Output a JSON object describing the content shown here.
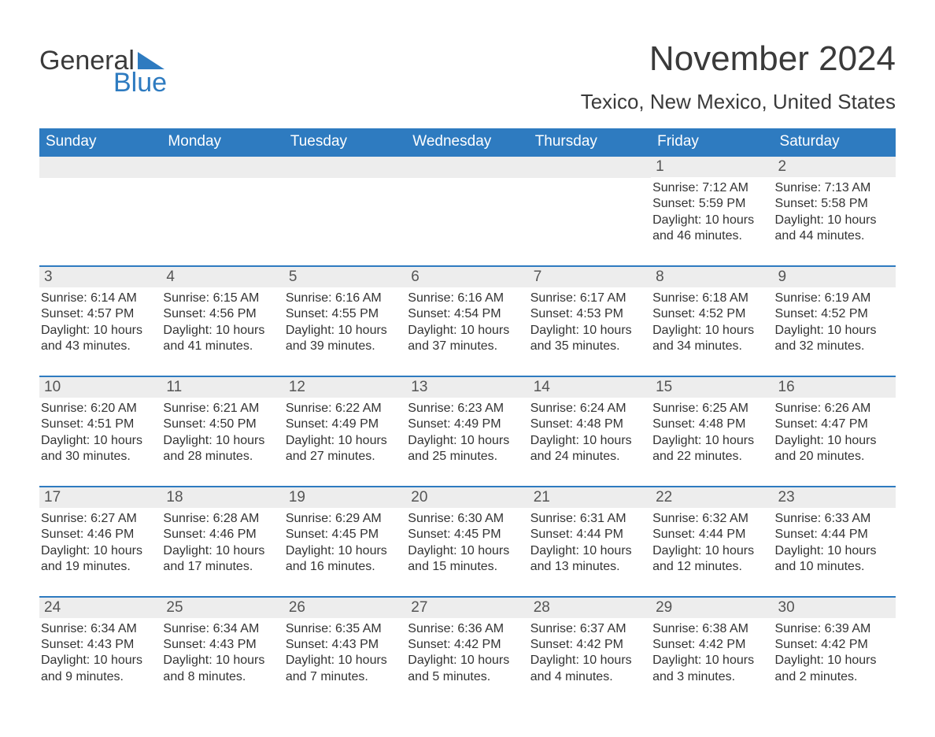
{
  "logo": {
    "word1": "General",
    "word2": "Blue",
    "accent": "#2e7bc0",
    "text_color": "#3a3a3a"
  },
  "title": "November 2024",
  "location": "Texico, New Mexico, United States",
  "colors": {
    "header_bg": "#2e7bc0",
    "header_text": "#ffffff",
    "row_border": "#2e7bc0",
    "daynum_bg": "#ededed",
    "daynum_text": "#555555",
    "body_text": "#333333",
    "page_bg": "#ffffff"
  },
  "typography": {
    "title_fontsize": 44,
    "location_fontsize": 26,
    "weekday_fontsize": 19,
    "daynum_fontsize": 19,
    "info_fontsize": 16,
    "font_family": "Segoe UI"
  },
  "weekdays": [
    "Sunday",
    "Monday",
    "Tuesday",
    "Wednesday",
    "Thursday",
    "Friday",
    "Saturday"
  ],
  "leading_blanks": 5,
  "days": [
    {
      "n": 1,
      "sunrise": "7:12 AM",
      "sunset": "5:59 PM",
      "daylight": "10 hours and 46 minutes."
    },
    {
      "n": 2,
      "sunrise": "7:13 AM",
      "sunset": "5:58 PM",
      "daylight": "10 hours and 44 minutes."
    },
    {
      "n": 3,
      "sunrise": "6:14 AM",
      "sunset": "4:57 PM",
      "daylight": "10 hours and 43 minutes."
    },
    {
      "n": 4,
      "sunrise": "6:15 AM",
      "sunset": "4:56 PM",
      "daylight": "10 hours and 41 minutes."
    },
    {
      "n": 5,
      "sunrise": "6:16 AM",
      "sunset": "4:55 PM",
      "daylight": "10 hours and 39 minutes."
    },
    {
      "n": 6,
      "sunrise": "6:16 AM",
      "sunset": "4:54 PM",
      "daylight": "10 hours and 37 minutes."
    },
    {
      "n": 7,
      "sunrise": "6:17 AM",
      "sunset": "4:53 PM",
      "daylight": "10 hours and 35 minutes."
    },
    {
      "n": 8,
      "sunrise": "6:18 AM",
      "sunset": "4:52 PM",
      "daylight": "10 hours and 34 minutes."
    },
    {
      "n": 9,
      "sunrise": "6:19 AM",
      "sunset": "4:52 PM",
      "daylight": "10 hours and 32 minutes."
    },
    {
      "n": 10,
      "sunrise": "6:20 AM",
      "sunset": "4:51 PM",
      "daylight": "10 hours and 30 minutes."
    },
    {
      "n": 11,
      "sunrise": "6:21 AM",
      "sunset": "4:50 PM",
      "daylight": "10 hours and 28 minutes."
    },
    {
      "n": 12,
      "sunrise": "6:22 AM",
      "sunset": "4:49 PM",
      "daylight": "10 hours and 27 minutes."
    },
    {
      "n": 13,
      "sunrise": "6:23 AM",
      "sunset": "4:49 PM",
      "daylight": "10 hours and 25 minutes."
    },
    {
      "n": 14,
      "sunrise": "6:24 AM",
      "sunset": "4:48 PM",
      "daylight": "10 hours and 24 minutes."
    },
    {
      "n": 15,
      "sunrise": "6:25 AM",
      "sunset": "4:48 PM",
      "daylight": "10 hours and 22 minutes."
    },
    {
      "n": 16,
      "sunrise": "6:26 AM",
      "sunset": "4:47 PM",
      "daylight": "10 hours and 20 minutes."
    },
    {
      "n": 17,
      "sunrise": "6:27 AM",
      "sunset": "4:46 PM",
      "daylight": "10 hours and 19 minutes."
    },
    {
      "n": 18,
      "sunrise": "6:28 AM",
      "sunset": "4:46 PM",
      "daylight": "10 hours and 17 minutes."
    },
    {
      "n": 19,
      "sunrise": "6:29 AM",
      "sunset": "4:45 PM",
      "daylight": "10 hours and 16 minutes."
    },
    {
      "n": 20,
      "sunrise": "6:30 AM",
      "sunset": "4:45 PM",
      "daylight": "10 hours and 15 minutes."
    },
    {
      "n": 21,
      "sunrise": "6:31 AM",
      "sunset": "4:44 PM",
      "daylight": "10 hours and 13 minutes."
    },
    {
      "n": 22,
      "sunrise": "6:32 AM",
      "sunset": "4:44 PM",
      "daylight": "10 hours and 12 minutes."
    },
    {
      "n": 23,
      "sunrise": "6:33 AM",
      "sunset": "4:44 PM",
      "daylight": "10 hours and 10 minutes."
    },
    {
      "n": 24,
      "sunrise": "6:34 AM",
      "sunset": "4:43 PM",
      "daylight": "10 hours and 9 minutes."
    },
    {
      "n": 25,
      "sunrise": "6:34 AM",
      "sunset": "4:43 PM",
      "daylight": "10 hours and 8 minutes."
    },
    {
      "n": 26,
      "sunrise": "6:35 AM",
      "sunset": "4:43 PM",
      "daylight": "10 hours and 7 minutes."
    },
    {
      "n": 27,
      "sunrise": "6:36 AM",
      "sunset": "4:42 PM",
      "daylight": "10 hours and 5 minutes."
    },
    {
      "n": 28,
      "sunrise": "6:37 AM",
      "sunset": "4:42 PM",
      "daylight": "10 hours and 4 minutes."
    },
    {
      "n": 29,
      "sunrise": "6:38 AM",
      "sunset": "4:42 PM",
      "daylight": "10 hours and 3 minutes."
    },
    {
      "n": 30,
      "sunrise": "6:39 AM",
      "sunset": "4:42 PM",
      "daylight": "10 hours and 2 minutes."
    }
  ],
  "labels": {
    "sunrise": "Sunrise:",
    "sunset": "Sunset:",
    "daylight": "Daylight:"
  }
}
